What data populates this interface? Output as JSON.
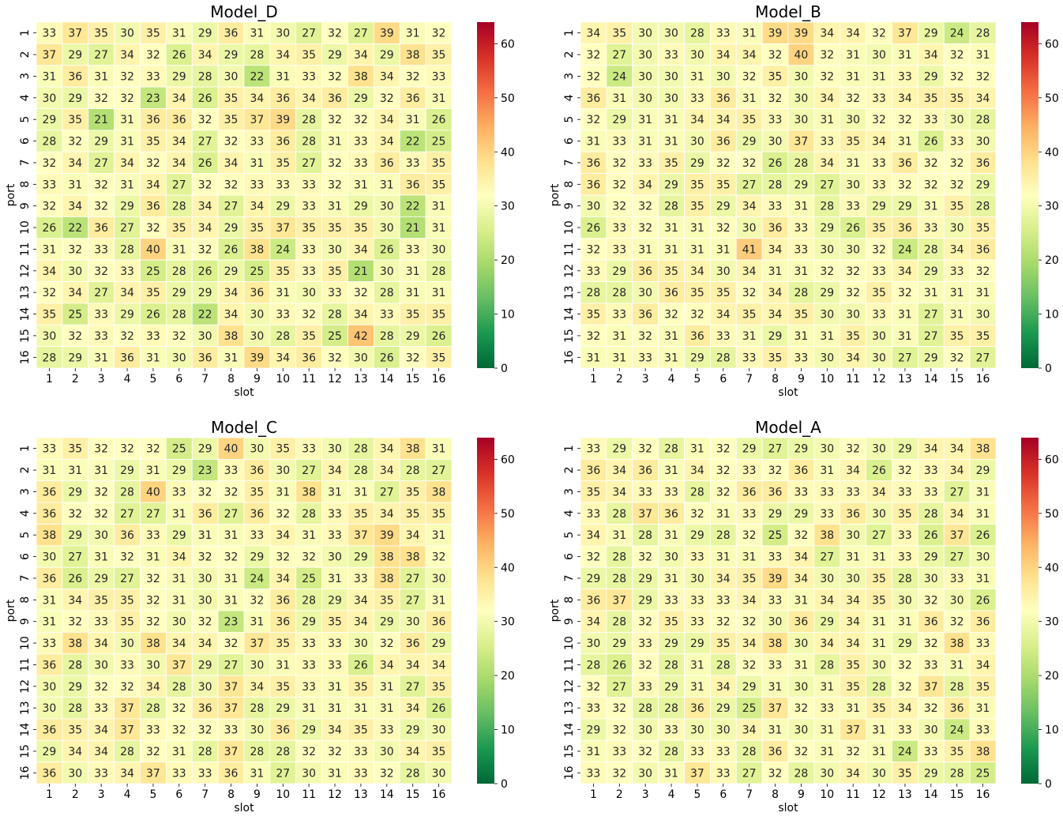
{
  "chart_data": [
    {
      "type": "heatmap",
      "title": "Model_D",
      "xlabel": "slot",
      "ylabel": "port",
      "x": [
        "1",
        "2",
        "3",
        "4",
        "5",
        "6",
        "7",
        "8",
        "9",
        "10",
        "11",
        "12",
        "13",
        "14",
        "15",
        "16"
      ],
      "y": [
        "1",
        "2",
        "3",
        "4",
        "5",
        "6",
        "7",
        "8",
        "9",
        "10",
        "11",
        "12",
        "13",
        "14",
        "15",
        "16"
      ],
      "colorbar": {
        "colormap": "RdYlGn_r",
        "min": 0,
        "max": 64,
        "ticks": [
          "0",
          "10",
          "20",
          "30",
          "40",
          "50",
          "60"
        ]
      },
      "values": [
        [
          33,
          37,
          35,
          30,
          35,
          31,
          29,
          36,
          31,
          30,
          27,
          32,
          27,
          39,
          31,
          32
        ],
        [
          37,
          29,
          27,
          34,
          32,
          26,
          34,
          29,
          28,
          34,
          35,
          29,
          34,
          29,
          38,
          35
        ],
        [
          31,
          36,
          31,
          32,
          33,
          29,
          28,
          30,
          22,
          31,
          33,
          32,
          38,
          34,
          32,
          33
        ],
        [
          30,
          29,
          32,
          32,
          23,
          34,
          26,
          35,
          34,
          36,
          34,
          36,
          29,
          32,
          36,
          31
        ],
        [
          29,
          35,
          21,
          31,
          36,
          36,
          32,
          35,
          37,
          39,
          28,
          32,
          32,
          34,
          31,
          26
        ],
        [
          28,
          32,
          29,
          31,
          35,
          34,
          27,
          32,
          33,
          36,
          28,
          31,
          33,
          34,
          22,
          25
        ],
        [
          32,
          34,
          27,
          34,
          32,
          34,
          26,
          34,
          31,
          35,
          27,
          32,
          33,
          36,
          33,
          35
        ],
        [
          33,
          31,
          32,
          31,
          34,
          27,
          32,
          32,
          33,
          33,
          33,
          32,
          31,
          31,
          36,
          35
        ],
        [
          32,
          34,
          32,
          29,
          36,
          28,
          34,
          27,
          34,
          29,
          33,
          31,
          29,
          30,
          22,
          31
        ],
        [
          26,
          22,
          36,
          27,
          32,
          35,
          34,
          29,
          35,
          37,
          35,
          35,
          35,
          30,
          21,
          31
        ],
        [
          31,
          32,
          33,
          28,
          40,
          31,
          32,
          26,
          38,
          24,
          33,
          30,
          34,
          26,
          33,
          30
        ],
        [
          34,
          30,
          32,
          33,
          25,
          28,
          26,
          29,
          25,
          35,
          33,
          35,
          21,
          30,
          31,
          28
        ],
        [
          32,
          34,
          27,
          34,
          35,
          29,
          29,
          34,
          36,
          31,
          30,
          33,
          32,
          28,
          31,
          31
        ],
        [
          35,
          25,
          33,
          29,
          26,
          28,
          22,
          34,
          30,
          33,
          32,
          28,
          34,
          33,
          35,
          35
        ],
        [
          30,
          32,
          33,
          32,
          33,
          32,
          30,
          38,
          30,
          28,
          35,
          25,
          42,
          28,
          29,
          26
        ],
        [
          28,
          29,
          31,
          36,
          31,
          30,
          36,
          31,
          39,
          34,
          36,
          32,
          30,
          26,
          32,
          35
        ]
      ]
    },
    {
      "type": "heatmap",
      "title": "Model_B",
      "xlabel": "slot",
      "ylabel": "port",
      "x": [
        "1",
        "2",
        "3",
        "4",
        "5",
        "6",
        "7",
        "8",
        "9",
        "10",
        "11",
        "12",
        "13",
        "14",
        "15",
        "16"
      ],
      "y": [
        "1",
        "2",
        "3",
        "4",
        "5",
        "6",
        "7",
        "8",
        "9",
        "10",
        "11",
        "12",
        "13",
        "14",
        "15",
        "16"
      ],
      "colorbar": {
        "colormap": "RdYlGn_r",
        "min": 0,
        "max": 64,
        "ticks": [
          "0",
          "10",
          "20",
          "30",
          "40",
          "50",
          "60"
        ]
      },
      "values": [
        [
          34,
          35,
          30,
          30,
          28,
          33,
          31,
          39,
          39,
          34,
          34,
          32,
          37,
          29,
          24,
          28
        ],
        [
          32,
          27,
          30,
          33,
          30,
          34,
          34,
          32,
          40,
          32,
          31,
          30,
          31,
          34,
          32,
          31
        ],
        [
          32,
          24,
          30,
          30,
          31,
          30,
          32,
          35,
          30,
          32,
          31,
          31,
          33,
          29,
          32,
          32
        ],
        [
          36,
          31,
          30,
          30,
          33,
          36,
          31,
          32,
          30,
          34,
          32,
          33,
          34,
          35,
          35,
          34
        ],
        [
          32,
          29,
          31,
          31,
          34,
          34,
          35,
          33,
          30,
          31,
          30,
          32,
          32,
          33,
          30,
          28
        ],
        [
          31,
          33,
          31,
          31,
          30,
          36,
          29,
          30,
          37,
          33,
          35,
          34,
          31,
          26,
          33,
          30
        ],
        [
          36,
          32,
          33,
          35,
          29,
          32,
          32,
          26,
          28,
          34,
          31,
          33,
          36,
          32,
          32,
          36
        ],
        [
          36,
          32,
          34,
          29,
          35,
          35,
          27,
          28,
          29,
          27,
          30,
          33,
          32,
          32,
          32,
          29
        ],
        [
          30,
          32,
          32,
          28,
          35,
          29,
          34,
          33,
          31,
          28,
          33,
          29,
          29,
          31,
          35,
          28
        ],
        [
          26,
          33,
          32,
          31,
          31,
          32,
          30,
          36,
          33,
          29,
          26,
          35,
          36,
          33,
          30,
          35
        ],
        [
          32,
          33,
          31,
          31,
          31,
          31,
          41,
          34,
          33,
          30,
          30,
          32,
          24,
          28,
          34,
          36
        ],
        [
          33,
          29,
          36,
          35,
          34,
          30,
          34,
          31,
          31,
          32,
          32,
          33,
          34,
          29,
          33,
          32
        ],
        [
          28,
          28,
          30,
          36,
          35,
          35,
          32,
          34,
          28,
          29,
          32,
          35,
          32,
          31,
          31,
          31
        ],
        [
          35,
          33,
          36,
          32,
          32,
          34,
          35,
          34,
          35,
          30,
          30,
          33,
          31,
          27,
          31,
          30
        ],
        [
          32,
          31,
          32,
          31,
          36,
          33,
          31,
          29,
          31,
          31,
          35,
          30,
          31,
          27,
          35,
          35
        ],
        [
          31,
          31,
          33,
          31,
          29,
          28,
          33,
          35,
          33,
          30,
          34,
          30,
          27,
          29,
          32,
          27
        ]
      ]
    },
    {
      "type": "heatmap",
      "title": "Model_C",
      "xlabel": "slot",
      "ylabel": "port",
      "x": [
        "1",
        "2",
        "3",
        "4",
        "5",
        "6",
        "7",
        "8",
        "9",
        "10",
        "11",
        "12",
        "13",
        "14",
        "15",
        "16"
      ],
      "y": [
        "1",
        "2",
        "3",
        "4",
        "5",
        "6",
        "7",
        "8",
        "9",
        "10",
        "11",
        "12",
        "13",
        "14",
        "15",
        "16"
      ],
      "colorbar": {
        "colormap": "RdYlGn_r",
        "min": 0,
        "max": 64,
        "ticks": [
          "0",
          "10",
          "20",
          "30",
          "40",
          "50",
          "60"
        ]
      },
      "values": [
        [
          33,
          35,
          32,
          32,
          32,
          25,
          29,
          40,
          30,
          35,
          33,
          30,
          28,
          34,
          38,
          31
        ],
        [
          31,
          31,
          31,
          29,
          31,
          29,
          23,
          33,
          36,
          30,
          27,
          34,
          28,
          34,
          28,
          27
        ],
        [
          36,
          29,
          32,
          28,
          40,
          33,
          32,
          32,
          35,
          31,
          38,
          31,
          31,
          27,
          35,
          38
        ],
        [
          36,
          32,
          32,
          27,
          27,
          31,
          36,
          27,
          36,
          32,
          28,
          33,
          35,
          34,
          35,
          35
        ],
        [
          38,
          29,
          30,
          36,
          33,
          29,
          31,
          31,
          33,
          34,
          31,
          33,
          37,
          39,
          34,
          31
        ],
        [
          30,
          27,
          31,
          32,
          31,
          34,
          32,
          32,
          29,
          32,
          32,
          30,
          29,
          38,
          38,
          32
        ],
        [
          36,
          26,
          29,
          27,
          32,
          31,
          30,
          31,
          24,
          34,
          25,
          31,
          33,
          38,
          27,
          30
        ],
        [
          31,
          34,
          35,
          35,
          32,
          31,
          30,
          31,
          32,
          36,
          28,
          29,
          34,
          35,
          27,
          31
        ],
        [
          31,
          32,
          33,
          35,
          32,
          30,
          32,
          23,
          31,
          36,
          29,
          35,
          34,
          29,
          30,
          36
        ],
        [
          33,
          38,
          34,
          30,
          38,
          34,
          34,
          32,
          37,
          35,
          33,
          33,
          30,
          32,
          36,
          29
        ],
        [
          36,
          28,
          30,
          33,
          30,
          37,
          29,
          27,
          30,
          31,
          33,
          33,
          26,
          34,
          34,
          34
        ],
        [
          30,
          29,
          32,
          32,
          34,
          28,
          30,
          37,
          34,
          35,
          33,
          31,
          35,
          31,
          27,
          35
        ],
        [
          30,
          28,
          33,
          37,
          28,
          32,
          36,
          37,
          28,
          29,
          31,
          31,
          31,
          31,
          34,
          26
        ],
        [
          36,
          35,
          34,
          37,
          33,
          32,
          32,
          33,
          30,
          36,
          29,
          34,
          35,
          33,
          29,
          30
        ],
        [
          29,
          34,
          34,
          28,
          32,
          31,
          28,
          37,
          28,
          28,
          32,
          32,
          33,
          30,
          34,
          35
        ],
        [
          36,
          30,
          33,
          34,
          37,
          33,
          33,
          36,
          31,
          27,
          30,
          31,
          33,
          32,
          28,
          30
        ]
      ]
    },
    {
      "type": "heatmap",
      "title": "Model_A",
      "xlabel": "slot",
      "ylabel": "port",
      "x": [
        "1",
        "2",
        "3",
        "4",
        "5",
        "6",
        "7",
        "8",
        "9",
        "10",
        "11",
        "12",
        "13",
        "14",
        "15",
        "16"
      ],
      "y": [
        "1",
        "2",
        "3",
        "4",
        "5",
        "6",
        "7",
        "8",
        "9",
        "10",
        "11",
        "12",
        "13",
        "14",
        "15",
        "16"
      ],
      "colorbar": {
        "colormap": "RdYlGn_r",
        "min": 0,
        "max": 64,
        "ticks": [
          "0",
          "10",
          "20",
          "30",
          "40",
          "50",
          "60"
        ]
      },
      "values": [
        [
          33,
          29,
          32,
          28,
          31,
          32,
          29,
          27,
          29,
          30,
          32,
          30,
          29,
          34,
          34,
          38
        ],
        [
          36,
          34,
          36,
          31,
          34,
          32,
          33,
          32,
          36,
          31,
          34,
          26,
          32,
          33,
          34,
          29
        ],
        [
          35,
          34,
          33,
          33,
          28,
          32,
          36,
          36,
          33,
          33,
          33,
          34,
          33,
          33,
          27,
          31
        ],
        [
          33,
          28,
          37,
          36,
          32,
          31,
          33,
          29,
          29,
          33,
          36,
          30,
          35,
          28,
          34,
          31
        ],
        [
          34,
          31,
          28,
          31,
          29,
          28,
          32,
          25,
          32,
          38,
          30,
          27,
          33,
          26,
          37,
          26
        ],
        [
          32,
          28,
          32,
          30,
          33,
          31,
          31,
          33,
          34,
          27,
          31,
          31,
          33,
          29,
          27,
          30
        ],
        [
          29,
          28,
          29,
          31,
          30,
          34,
          35,
          39,
          34,
          30,
          30,
          35,
          28,
          30,
          33,
          31
        ],
        [
          36,
          37,
          29,
          33,
          33,
          33,
          34,
          33,
          31,
          34,
          34,
          35,
          30,
          32,
          30,
          26
        ],
        [
          34,
          28,
          32,
          35,
          33,
          32,
          32,
          30,
          36,
          29,
          34,
          31,
          31,
          36,
          32,
          36
        ],
        [
          30,
          29,
          33,
          29,
          29,
          35,
          34,
          38,
          30,
          34,
          34,
          31,
          29,
          32,
          38,
          33
        ],
        [
          28,
          26,
          32,
          28,
          31,
          28,
          32,
          33,
          31,
          28,
          35,
          30,
          32,
          33,
          31,
          34
        ],
        [
          32,
          27,
          33,
          29,
          31,
          34,
          29,
          31,
          30,
          31,
          35,
          28,
          32,
          37,
          28,
          35
        ],
        [
          33,
          32,
          28,
          28,
          36,
          29,
          25,
          37,
          32,
          33,
          31,
          35,
          34,
          32,
          36,
          31
        ],
        [
          29,
          32,
          30,
          33,
          30,
          30,
          34,
          31,
          30,
          31,
          37,
          31,
          33,
          30,
          24,
          33
        ],
        [
          31,
          33,
          32,
          28,
          33,
          33,
          28,
          36,
          32,
          31,
          32,
          31,
          24,
          33,
          35,
          38
        ],
        [
          33,
          32,
          30,
          31,
          37,
          33,
          27,
          32,
          28,
          30,
          34,
          30,
          35,
          29,
          28,
          25
        ]
      ]
    }
  ]
}
